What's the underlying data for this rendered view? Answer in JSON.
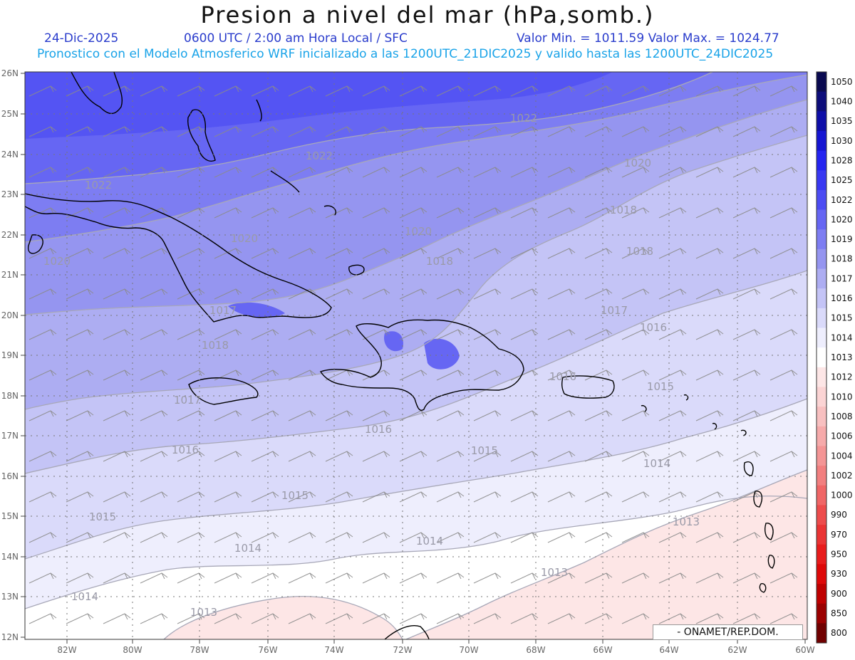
{
  "header": {
    "title": "Presion a nivel del mar (hPa,somb.)",
    "date": "24-Dic-2025",
    "time": "0600 UTC / 2:00 am Hora Local / SFC",
    "minmax": "Valor Min. = 1011.59  Valor Max. = 1024.77",
    "model_note": "Pronostico con el Modelo Atmosferico WRF inicializado a las 1200UTC_21DIC2025 y valido hasta las  1200UTC_24DIC2025"
  },
  "map": {
    "lat_labels": [
      "26N",
      "25N",
      "24N",
      "23N",
      "22N",
      "21N",
      "20N",
      "19N",
      "18N",
      "17N",
      "16N",
      "15N",
      "14N",
      "13N",
      "12N"
    ],
    "lon_labels": [
      "82W",
      "80W",
      "78W",
      "76W",
      "74W",
      "72W",
      "70W",
      "68W",
      "66W",
      "64W",
      "62W",
      "60W"
    ],
    "contour_labels": [
      "1022",
      "1022",
      "1022",
      "1020",
      "1020",
      "1020",
      "1020",
      "1018",
      "1018",
      "1018",
      "1018",
      "1017",
      "1017",
      "1017",
      "1016",
      "1016",
      "1016",
      "1016",
      "1015",
      "1015",
      "1015",
      "1015",
      "1014",
      "1014",
      "1014",
      "1014",
      "1013",
      "1013",
      "1013"
    ]
  },
  "colorbar": {
    "levels": [
      "1050",
      "1040",
      "1035",
      "1030",
      "1028",
      "1025",
      "1022",
      "1020",
      "1019",
      "1018",
      "1017",
      "1016",
      "1015",
      "1014",
      "1013",
      "1012",
      "1010",
      "1008",
      "1006",
      "1004",
      "1002",
      "1000",
      "990",
      "970",
      "950",
      "930",
      "900",
      "850",
      "800"
    ],
    "colors": [
      "#0a0a50",
      "#0d0d7a",
      "#0e0ea8",
      "#1515d2",
      "#2424f0",
      "#3838f2",
      "#4c4cf3",
      "#6666f3",
      "#7d7df2",
      "#9595f0",
      "#adadf2",
      "#c4c4f6",
      "#dadafa",
      "#eeeefd",
      "#ffffff",
      "#fde6e6",
      "#fbd4d4",
      "#f8c0c0",
      "#f6aaaa",
      "#f49595",
      "#f27f7f",
      "#f06666",
      "#ed4c4c",
      "#ea3434",
      "#e81c1c",
      "#de0808",
      "#bf0000",
      "#9b0000",
      "#700000"
    ]
  },
  "credit": "- ONAMET/REP.DOM."
}
